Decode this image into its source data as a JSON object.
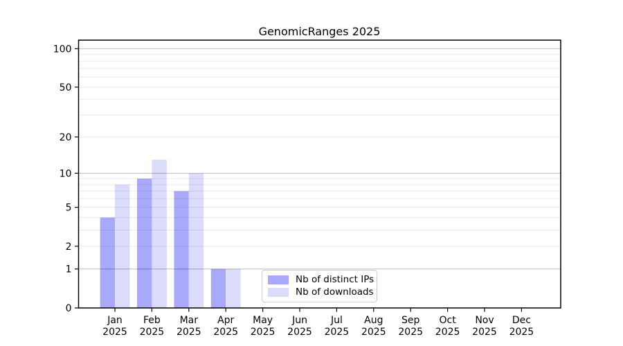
{
  "title": "GenomicRanges 2025",
  "legend": {
    "items": [
      {
        "label": "Nb of distinct IPs",
        "color": "#a8a9fa"
      },
      {
        "label": "Nb of downloads",
        "color": "#dbdcf9"
      }
    ]
  },
  "y_axis": {
    "tick_labels": [
      "0",
      "1",
      "2",
      "5",
      "10",
      "20",
      "50",
      "100"
    ]
  },
  "x_axis": {
    "months": [
      "Jan",
      "Feb",
      "Mar",
      "Apr",
      "May",
      "Jun",
      "Jul",
      "Aug",
      "Sep",
      "Oct",
      "Nov",
      "Dec"
    ],
    "year_label": "2025"
  },
  "chart_data": {
    "type": "bar",
    "title": "GenomicRanges 2025",
    "categories": [
      "Jan 2025",
      "Feb 2025",
      "Mar 2025",
      "Apr 2025",
      "May 2025",
      "Jun 2025",
      "Jul 2025",
      "Aug 2025",
      "Sep 2025",
      "Oct 2025",
      "Nov 2025",
      "Dec 2025"
    ],
    "categories_line1": [
      "Jan",
      "Feb",
      "Mar",
      "Apr",
      "May",
      "Jun",
      "Jul",
      "Aug",
      "Sep",
      "Oct",
      "Nov",
      "Dec"
    ],
    "year_label": "2025",
    "series": [
      {
        "name": "Nb of distinct IPs",
        "color": "#a8a9fa",
        "values": [
          4,
          9,
          7,
          1,
          0,
          0,
          0,
          0,
          0,
          0,
          0,
          0
        ]
      },
      {
        "name": "Nb of downloads",
        "color": "#dbdcf9",
        "values": [
          8,
          13,
          10,
          1,
          0,
          0,
          0,
          0,
          0,
          0,
          0,
          0
        ]
      }
    ],
    "yscale": "log10(1+v)",
    "ylim": [
      0,
      117
    ],
    "y_ticks": [
      0,
      1,
      2,
      5,
      10,
      20,
      50,
      100
    ],
    "y_major_grid": [
      1,
      10,
      100
    ],
    "y_minor_grid": [
      2,
      3,
      4,
      5,
      6,
      7,
      8,
      9,
      20,
      30,
      40,
      50,
      60,
      70,
      80,
      90
    ],
    "grid": "horizontal",
    "legend_position": "lower center inside"
  },
  "colors": {
    "axis": "#000000",
    "tick_label": "#000000",
    "grid_major": "rgba(0,0,0,0.26)",
    "grid_minor": "rgba(0,0,0,0.08)",
    "background": "#ffffff",
    "legend_border": "#cccccc"
  }
}
